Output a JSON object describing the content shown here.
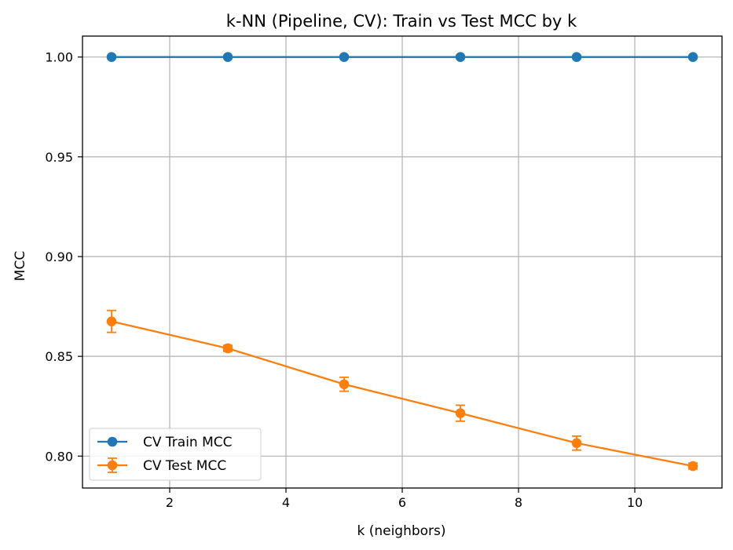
{
  "chart_data": {
    "type": "line",
    "title": "k-NN (Pipeline, CV): Train vs Test MCC by k",
    "xlabel": "k (neighbors)",
    "ylabel": "MCC",
    "xlim": [
      0.5,
      11.5
    ],
    "ylim": [
      0.784,
      1.0105
    ],
    "xticks": [
      2,
      4,
      6,
      8,
      10
    ],
    "xtick_labels": [
      "2",
      "4",
      "6",
      "8",
      "10"
    ],
    "yticks": [
      0.8,
      0.85,
      0.9,
      0.95,
      1.0
    ],
    "ytick_labels": [
      "0.80",
      "0.85",
      "0.90",
      "0.95",
      "1.00"
    ],
    "grid": true,
    "legend_position": "lower-left",
    "x": [
      1,
      3,
      5,
      7,
      9,
      11
    ],
    "series": [
      {
        "name": "CV Train MCC",
        "color": "#1f77b4",
        "values": [
          1.0,
          1.0,
          1.0,
          1.0,
          1.0,
          1.0
        ],
        "error": [
          0,
          0,
          0,
          0,
          0,
          0
        ]
      },
      {
        "name": "CV Test MCC",
        "color": "#ff7f0e",
        "values": [
          0.8675,
          0.854,
          0.836,
          0.8215,
          0.8065,
          0.795
        ],
        "error": [
          0.0055,
          0.0015,
          0.0035,
          0.004,
          0.0035,
          0.0015
        ]
      }
    ]
  }
}
